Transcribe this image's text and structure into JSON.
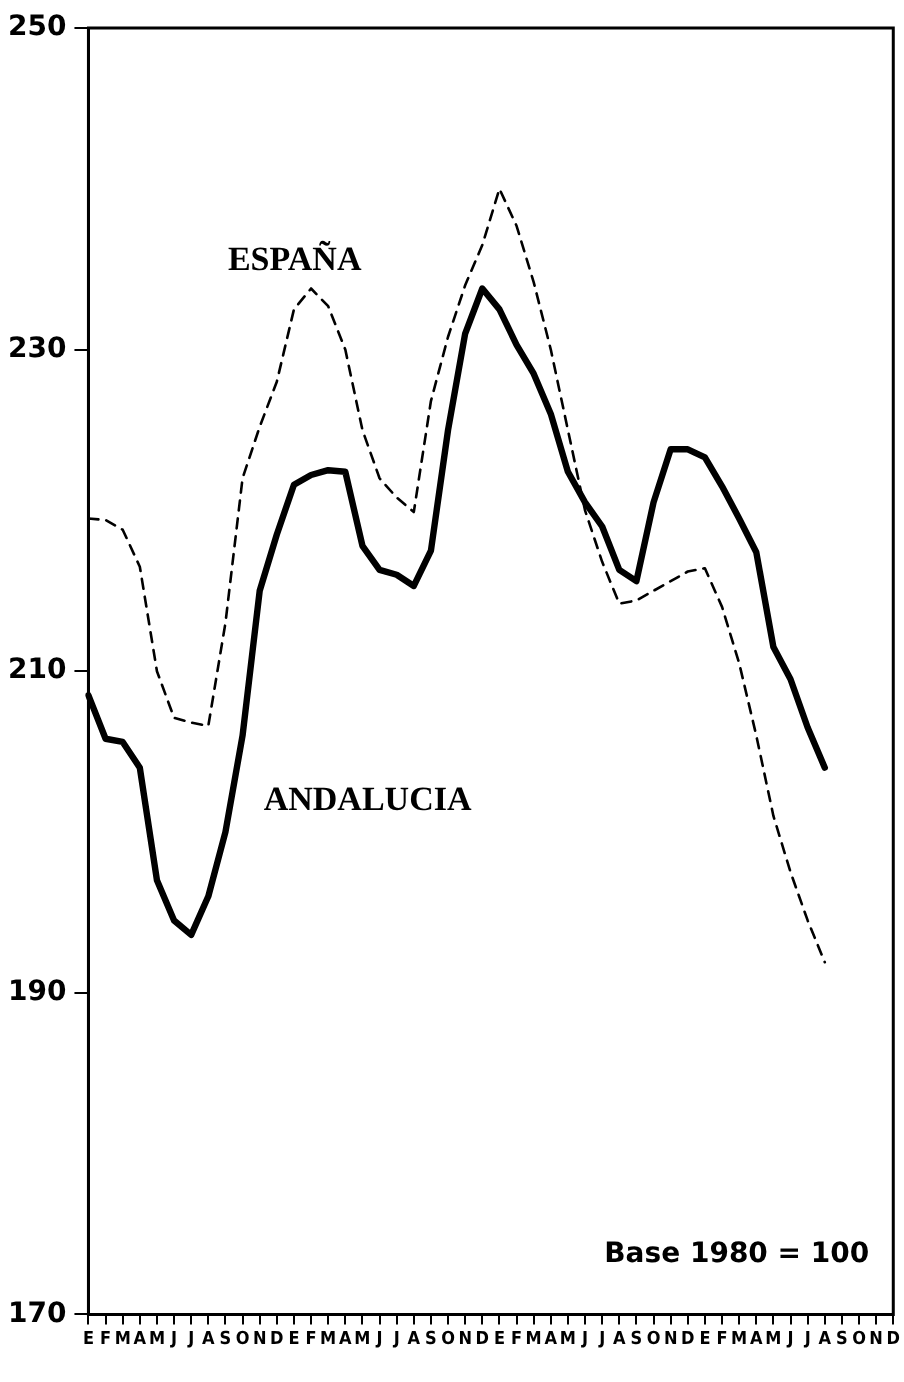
{
  "chart_data": {
    "type": "line",
    "categories": [
      "E",
      "F",
      "M",
      "A",
      "M",
      "J",
      "J",
      "A",
      "S",
      "O",
      "N",
      "D",
      "E",
      "F",
      "M",
      "A",
      "M",
      "J",
      "J",
      "A",
      "S",
      "O",
      "N",
      "D",
      "E",
      "F",
      "M",
      "A",
      "M",
      "J",
      "J",
      "A",
      "S",
      "O",
      "N",
      "D",
      "E",
      "F",
      "M",
      "A",
      "M",
      "J",
      "J",
      "A",
      "S",
      "O",
      "N",
      "D"
    ],
    "series": [
      {
        "name": "ESPAÑA",
        "color": "#000000",
        "line_style": "dashed",
        "values": [
          219.5,
          219.4,
          218.8,
          216.5,
          210,
          207.1,
          206.8,
          206.6,
          213,
          222,
          225.2,
          228,
          232.5,
          233.8,
          232.7,
          230,
          225,
          222,
          220.8,
          219.9,
          226.8,
          230.8,
          234,
          236.5,
          240,
          237.7,
          234.2,
          230,
          225,
          220,
          216.8,
          214.2,
          214.4,
          215,
          215.6,
          216.2,
          216.4,
          214,
          210.5,
          206,
          201,
          197.5,
          194.5,
          191.9,
          null,
          null,
          null,
          null
        ]
      },
      {
        "name": "ANDALUCIA",
        "color": "#000000",
        "line_style": "solid",
        "values": [
          208.5,
          205.8,
          205.6,
          204,
          197,
          194.5,
          193.6,
          196,
          200,
          206,
          215,
          218.5,
          221.6,
          222.2,
          222.5,
          222.4,
          217.8,
          216.3,
          216,
          215.3,
          217.5,
          225,
          231,
          233.8,
          232.5,
          230.3,
          228.5,
          226,
          222.4,
          220.5,
          219,
          216.3,
          215.6,
          220.5,
          223.8,
          223.8,
          223.3,
          221.5,
          219.5,
          217.4,
          211.5,
          209.5,
          206.5,
          204,
          null,
          null,
          null,
          null
        ]
      }
    ],
    "ylim": [
      170,
      250
    ],
    "yticks": [
      170,
      190,
      210,
      230,
      250
    ],
    "grid": false,
    "legend": false,
    "marker": "none",
    "annotations": [
      "Base 1980 = 100"
    ]
  }
}
